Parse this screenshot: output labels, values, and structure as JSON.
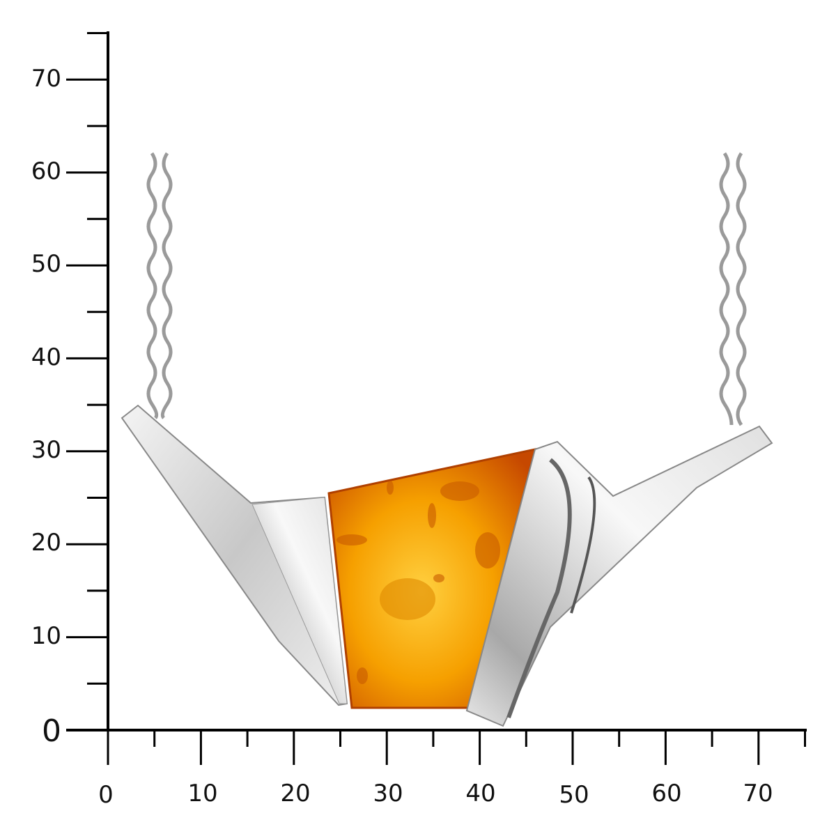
{
  "image": {
    "subject": "amber pendant necklace",
    "colors": {
      "amber": "#f5a000",
      "amber_edge": "#c84a00",
      "silver": "#d8d8d8",
      "axis": "#000000"
    }
  },
  "axes": {
    "x_ticks": [
      "0",
      "10",
      "20",
      "30",
      "40",
      "50",
      "60",
      "70"
    ],
    "y_ticks": [
      "0",
      "10",
      "20",
      "30",
      "40",
      "50",
      "60",
      "70"
    ]
  }
}
